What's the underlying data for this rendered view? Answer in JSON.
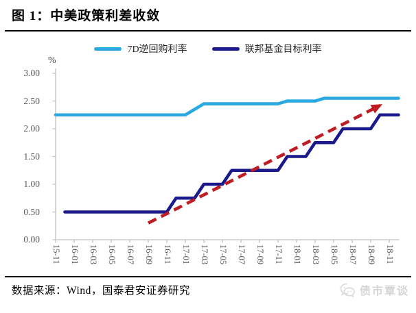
{
  "figure": {
    "title": "图 1：中美政策利差收敛",
    "percent_label": "%",
    "source": "数据来源：Wind，国泰君安证券研究",
    "watermark": "债市覃谈"
  },
  "legend": {
    "items": [
      {
        "label": "7D逆回购利率",
        "color": "#29A9E0"
      },
      {
        "label": "联邦基金目标利率",
        "color": "#1A1A8C"
      }
    ]
  },
  "chart_data": {
    "type": "line",
    "title": "中美政策利差收敛",
    "ylabel": "%",
    "ylim": [
      0,
      3
    ],
    "grid": false,
    "legend_position": "top",
    "axis_color": "#BFBFBF",
    "tick_label_color": "#595959",
    "yticks": [
      "0.00",
      "0.50",
      "1.00",
      "1.50",
      "2.00",
      "2.50",
      "3.00"
    ],
    "x": [
      "15-11",
      "15-12",
      "16-01",
      "16-02",
      "16-03",
      "16-04",
      "16-05",
      "16-06",
      "16-07",
      "16-08",
      "16-09",
      "16-10",
      "16-11",
      "16-12",
      "17-01",
      "17-02",
      "17-03",
      "17-04",
      "17-05",
      "17-06",
      "17-07",
      "17-08",
      "17-09",
      "17-10",
      "17-11",
      "17-12",
      "18-01",
      "18-02",
      "18-03",
      "18-04",
      "18-05",
      "18-06",
      "18-07",
      "18-08",
      "18-09",
      "18-10",
      "18-11",
      "18-12"
    ],
    "x_tick_labels": [
      "15-11",
      "16-01",
      "16-03",
      "16-05",
      "16-07",
      "16-09",
      "16-11",
      "17-01",
      "17-03",
      "17-05",
      "17-07",
      "17-09",
      "17-11",
      "18-01",
      "18-03",
      "18-05",
      "18-07",
      "18-09",
      "18-11"
    ],
    "series": [
      {
        "name": "7D逆回购利率",
        "color": "#29A9E0",
        "values": [
          2.25,
          2.25,
          2.25,
          2.25,
          2.25,
          2.25,
          2.25,
          2.25,
          2.25,
          2.25,
          2.25,
          2.25,
          2.25,
          2.25,
          2.25,
          2.35,
          2.45,
          2.45,
          2.45,
          2.45,
          2.45,
          2.45,
          2.45,
          2.45,
          2.45,
          2.5,
          2.5,
          2.5,
          2.5,
          2.55,
          2.55,
          2.55,
          2.55,
          2.55,
          2.55,
          2.55,
          2.55,
          2.55
        ]
      },
      {
        "name": "联邦基金目标利率",
        "color": "#1A1A8C",
        "values": [
          null,
          0.5,
          0.5,
          0.5,
          0.5,
          0.5,
          0.5,
          0.5,
          0.5,
          0.5,
          0.5,
          0.5,
          0.5,
          0.75,
          0.75,
          0.75,
          1.0,
          1.0,
          1.0,
          1.25,
          1.25,
          1.25,
          1.25,
          1.25,
          1.25,
          1.5,
          1.5,
          1.5,
          1.75,
          1.75,
          1.75,
          2.0,
          2.0,
          2.0,
          2.0,
          2.25,
          2.25,
          2.25
        ]
      }
    ],
    "annotation_arrow": {
      "description": "upward convergence trend arrow",
      "from_x": "16-09",
      "from_y": 0.3,
      "to_x": "18-10",
      "to_y": 2.42,
      "color": "#BF1D24",
      "style": "dashed"
    }
  }
}
